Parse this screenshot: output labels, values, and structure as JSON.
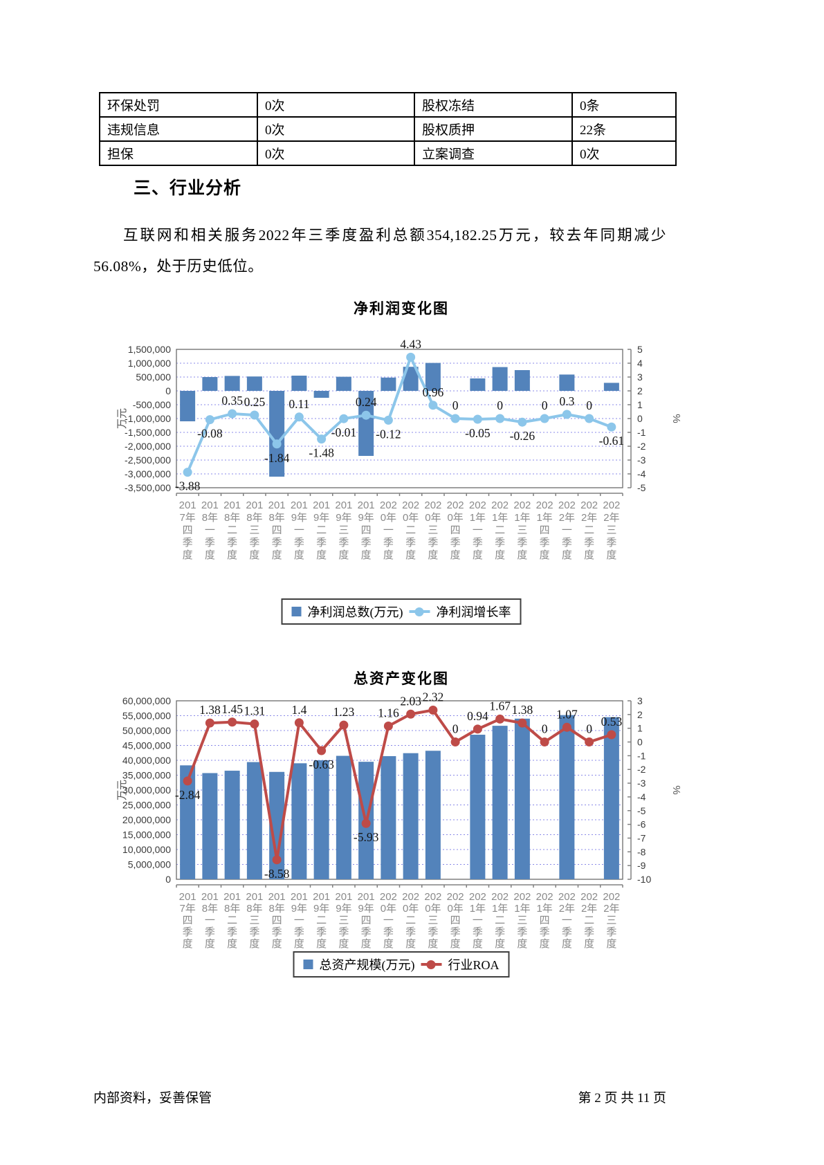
{
  "page": {
    "table": {
      "rows": [
        [
          "环保处罚",
          "0次",
          "股权冻结",
          "0条"
        ],
        [
          "违规信息",
          "0次",
          "股权质押",
          "22条"
        ],
        [
          "担保",
          "0次",
          "立案调查",
          "0次"
        ]
      ]
    },
    "section_heading": "三、行业分析",
    "paragraph": "互联网和相关服务2022年三季度盈利总额354,182.25万元，较去年同期减少56.08%，处于历史低位。",
    "footer": {
      "left": "内部资料，妥善保管",
      "right": "第 2 页  共 11 页"
    }
  },
  "chart_data": [
    {
      "type": "bar",
      "subtype": "bar+line dual axis",
      "title": "净利润变化图",
      "categories": [
        "2017年四季度",
        "2018年一季度",
        "2018年二季度",
        "2018年三季度",
        "2018年四季度",
        "2019年一季度",
        "2019年二季度",
        "2019年三季度",
        "2019年四季度",
        "2020年一季度",
        "2020年二季度",
        "2020年三季度",
        "2020年四季度",
        "2021年一季度",
        "2021年二季度",
        "2021年三季度",
        "2021年四季度",
        "2022年一季度",
        "2022年二季度",
        "2022年三季度"
      ],
      "series": [
        {
          "name": "净利润总数(万元)",
          "type": "bar",
          "axis": "left",
          "values": [
            -1100000,
            500000,
            540000,
            520000,
            -3100000,
            550000,
            -250000,
            510000,
            -2350000,
            480000,
            870000,
            1010000,
            null,
            450000,
            860000,
            750000,
            null,
            590000,
            null,
            290000
          ]
        },
        {
          "name": "净利润增长率",
          "type": "line",
          "axis": "right",
          "values": [
            -3.88,
            -0.08,
            0.35,
            0.25,
            -1.84,
            0.11,
            -1.48,
            -0.01,
            0.24,
            -0.12,
            4.43,
            0.96,
            0,
            -0.05,
            0,
            -0.26,
            0,
            0.3,
            0,
            -0.61
          ]
        }
      ],
      "left_axis": {
        "title": "万元",
        "min": -3500000,
        "max": 1500000,
        "step": 500000
      },
      "right_axis": {
        "title": "%",
        "min": -5,
        "max": 5,
        "step": 1
      },
      "bar_color": "#5383bb",
      "line_color": "#8cc6ea",
      "grid": true,
      "legend_position": "bottom"
    },
    {
      "type": "bar",
      "subtype": "bar+line dual axis",
      "title": "总资产变化图",
      "categories": [
        "2017年四季度",
        "2018年一季度",
        "2018年二季度",
        "2018年三季度",
        "2018年四季度",
        "2019年一季度",
        "2019年二季度",
        "2019年三季度",
        "2019年四季度",
        "2020年一季度",
        "2020年二季度",
        "2020年三季度",
        "2020年四季度",
        "2021年一季度",
        "2021年二季度",
        "2021年三季度",
        "2021年四季度",
        "2022年一季度",
        "2022年二季度",
        "2022年三季度"
      ],
      "series": [
        {
          "name": "总资产规模(万元)",
          "type": "bar",
          "axis": "left",
          "values": [
            38300000,
            35700000,
            36500000,
            39400000,
            36100000,
            39000000,
            40000000,
            41500000,
            39500000,
            41400000,
            42400000,
            43200000,
            null,
            48600000,
            51600000,
            54000000,
            null,
            55200000,
            null,
            54500000
          ]
        },
        {
          "name": "行业ROA",
          "type": "line",
          "axis": "right",
          "values": [
            -2.84,
            1.38,
            1.45,
            1.31,
            -8.58,
            1.4,
            -0.63,
            1.23,
            -5.93,
            1.16,
            2.03,
            2.32,
            0,
            0.94,
            1.67,
            1.38,
            0,
            1.07,
            0,
            0.53
          ]
        }
      ],
      "left_axis": {
        "title": "万元",
        "min": 0,
        "max": 60000000,
        "step": 5000000
      },
      "right_axis": {
        "title": "%",
        "min": -10,
        "max": 3,
        "step": 1
      },
      "bar_color": "#5383bb",
      "line_color": "#be4b48",
      "grid": true,
      "legend_position": "bottom"
    }
  ]
}
